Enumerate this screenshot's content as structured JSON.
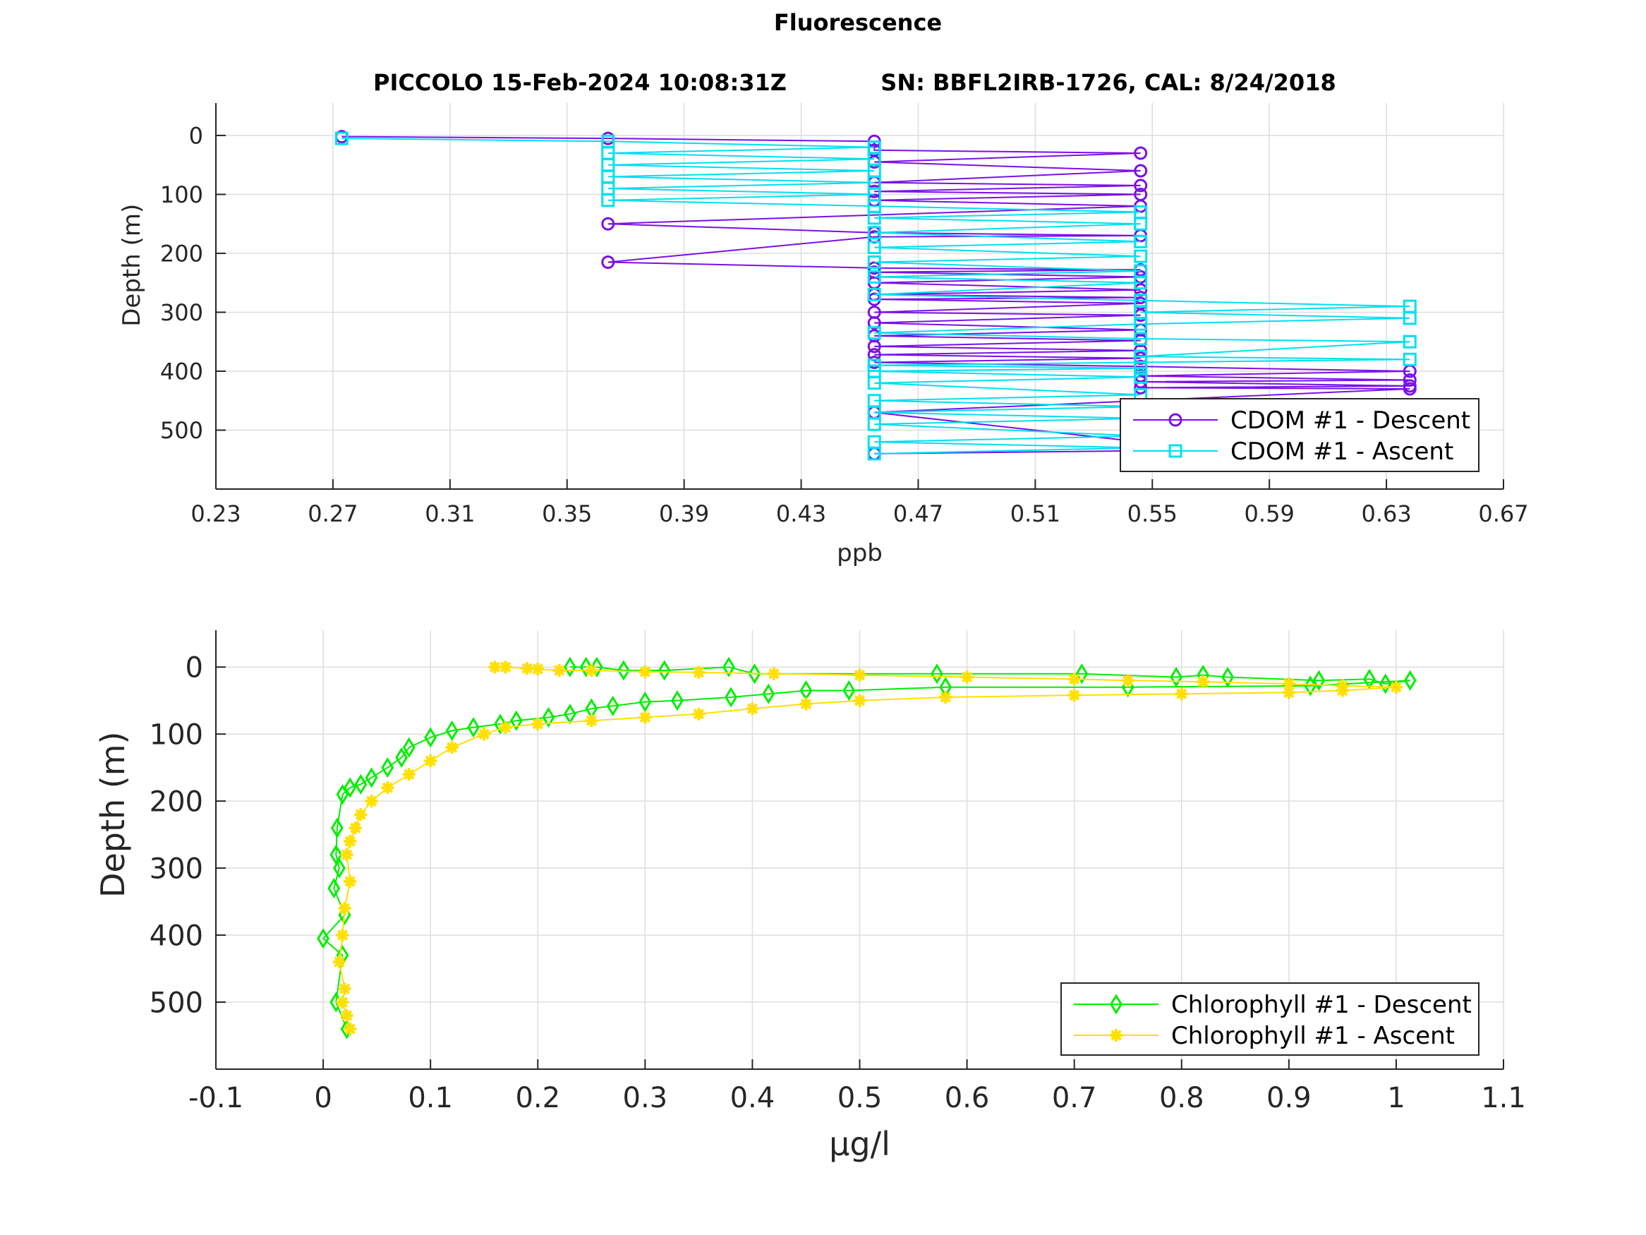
{
  "figure_title": "Fluorescence",
  "subtitle_left": "PICCOLO 15-Feb-2024 10:08:31Z",
  "subtitle_right": "SN: BBFL2IRB-1726, CAL: 8/24/2018",
  "colors": {
    "cdom_descent": "#7B10E8",
    "cdom_ascent": "#00E0F0",
    "chl_descent": "#00EE00",
    "chl_ascent": "#FFE000",
    "grid": "#DDDDDD",
    "axis": "#262626"
  },
  "chart_data": [
    {
      "type": "line",
      "name": "cdom",
      "xlabel": "ppb",
      "ylabel": "Depth (m)",
      "xlim": [
        0.23,
        0.67
      ],
      "ylim": [
        -55,
        600
      ],
      "y_reversed": true,
      "grid": true,
      "legend_position": "bottom-right",
      "x_ticks": [
        "0.23",
        "0.27",
        "0.31",
        "0.35",
        "0.39",
        "0.43",
        "0.47",
        "0.51",
        "0.55",
        "0.59",
        "0.63",
        "0.67"
      ],
      "y_ticks": [
        "0",
        "100",
        "200",
        "300",
        "400",
        "500"
      ],
      "x_tick_values": [
        0.23,
        0.27,
        0.31,
        0.35,
        0.39,
        0.43,
        0.47,
        0.51,
        0.55,
        0.59,
        0.63,
        0.67
      ],
      "y_tick_values": [
        0,
        100,
        200,
        300,
        400,
        500
      ],
      "series": [
        {
          "name": "CDOM #1 - Descent",
          "marker": "circle",
          "x": [
            0.273,
            0.364,
            0.455,
            0.455,
            0.546,
            0.455,
            0.546,
            0.455,
            0.546,
            0.455,
            0.546,
            0.455,
            0.546,
            0.364,
            0.455,
            0.546,
            0.455,
            0.364,
            0.455,
            0.546,
            0.455,
            0.546,
            0.455,
            0.546,
            0.455,
            0.546,
            0.455,
            0.546,
            0.455,
            0.546,
            0.455,
            0.546,
            0.455,
            0.546,
            0.455,
            0.546,
            0.455,
            0.546,
            0.455,
            0.546,
            0.638,
            0.546,
            0.638,
            0.546,
            0.638,
            0.546,
            0.638,
            0.455,
            0.546,
            0.638,
            0.455
          ],
          "y": [
            2,
            5,
            10,
            25,
            30,
            45,
            60,
            80,
            85,
            95,
            100,
            110,
            120,
            150,
            165,
            170,
            172,
            215,
            225,
            228,
            232,
            240,
            250,
            262,
            270,
            275,
            278,
            285,
            300,
            305,
            318,
            330,
            340,
            348,
            358,
            365,
            372,
            378,
            385,
            392,
            400,
            408,
            415,
            418,
            425,
            428,
            430,
            470,
            520,
            530,
            540
          ]
        },
        {
          "name": "CDOM #1 - Ascent",
          "marker": "square",
          "x": [
            0.455,
            0.546,
            0.455,
            0.546,
            0.455,
            0.546,
            0.455,
            0.546,
            0.455,
            0.546,
            0.455,
            0.546,
            0.455,
            0.546,
            0.455,
            0.546,
            0.638,
            0.546,
            0.638,
            0.546,
            0.455,
            0.546,
            0.638,
            0.546,
            0.638,
            0.546,
            0.455,
            0.546,
            0.455,
            0.546,
            0.455,
            0.546,
            0.455,
            0.546,
            0.455,
            0.546,
            0.455,
            0.546,
            0.455,
            0.364,
            0.455,
            0.364,
            0.455,
            0.364,
            0.455,
            0.364,
            0.455,
            0.364,
            0.455,
            0.364,
            0.273
          ],
          "y": [
            540,
            530,
            520,
            510,
            490,
            480,
            470,
            460,
            450,
            440,
            420,
            410,
            400,
            395,
            390,
            385,
            380,
            375,
            350,
            345,
            335,
            320,
            310,
            300,
            290,
            280,
            270,
            250,
            240,
            230,
            215,
            205,
            190,
            180,
            165,
            150,
            140,
            130,
            120,
            110,
            100,
            90,
            80,
            70,
            60,
            50,
            40,
            30,
            20,
            10,
            5
          ]
        }
      ]
    },
    {
      "type": "line",
      "name": "chlorophyll",
      "xlabel": "μg/l",
      "ylabel": "Depth (m)",
      "xlim": [
        -0.1,
        1.1
      ],
      "ylim": [
        -55,
        600
      ],
      "y_reversed": true,
      "grid": true,
      "legend_position": "bottom-right",
      "x_ticks": [
        "-0.1",
        "0",
        "0.1",
        "0.2",
        "0.3",
        "0.4",
        "0.5",
        "0.6",
        "0.7",
        "0.8",
        "0.9",
        "1",
        "1.1"
      ],
      "y_ticks": [
        "0",
        "100",
        "200",
        "300",
        "400",
        "500"
      ],
      "x_tick_values": [
        -0.1,
        0,
        0.1,
        0.2,
        0.3,
        0.4,
        0.5,
        0.6,
        0.7,
        0.8,
        0.9,
        1.0,
        1.1
      ],
      "y_tick_values": [
        0,
        100,
        200,
        300,
        400,
        500
      ],
      "series": [
        {
          "name": "Chlorophyll #1 - Descent",
          "marker": "diamond",
          "x": [
            0.23,
            0.245,
            0.255,
            0.28,
            0.318,
            0.378,
            0.402,
            0.572,
            0.707,
            0.795,
            0.82,
            0.843,
            0.928,
            0.975,
            0.99,
            1.013,
            0.92,
            0.75,
            0.58,
            0.49,
            0.45,
            0.415,
            0.38,
            0.33,
            0.3,
            0.27,
            0.25,
            0.23,
            0.21,
            0.18,
            0.165,
            0.14,
            0.12,
            0.1,
            0.08,
            0.073,
            0.06,
            0.045,
            0.035,
            0.025,
            0.018,
            0.013,
            0.012,
            0.015,
            0.01,
            0.02,
            0.0,
            0.018,
            0.012,
            0.022
          ],
          "y": [
            0,
            0,
            0,
            5,
            5,
            0,
            10,
            10,
            10,
            15,
            12,
            15,
            20,
            18,
            25,
            20,
            28,
            30,
            30,
            35,
            35,
            40,
            45,
            50,
            52,
            58,
            62,
            70,
            75,
            80,
            85,
            90,
            95,
            105,
            120,
            135,
            150,
            165,
            175,
            180,
            190,
            240,
            280,
            300,
            330,
            370,
            405,
            430,
            500,
            540
          ]
        },
        {
          "name": "Chlorophyll #1 - Ascent",
          "marker": "asterisk",
          "x": [
            0.025,
            0.022,
            0.018,
            0.02,
            0.015,
            0.018,
            0.02,
            0.025,
            0.022,
            0.025,
            0.03,
            0.035,
            0.045,
            0.06,
            0.08,
            0.1,
            0.12,
            0.15,
            0.17,
            0.2,
            0.25,
            0.3,
            0.35,
            0.4,
            0.45,
            0.5,
            0.58,
            0.7,
            0.8,
            0.9,
            0.95,
            1.0,
            0.95,
            0.9,
            0.82,
            0.75,
            0.7,
            0.6,
            0.5,
            0.42,
            0.35,
            0.3,
            0.25,
            0.22,
            0.2,
            0.19,
            0.17,
            0.16
          ],
          "y": [
            540,
            520,
            500,
            480,
            440,
            400,
            360,
            320,
            280,
            260,
            240,
            220,
            200,
            180,
            160,
            140,
            120,
            100,
            90,
            85,
            80,
            75,
            70,
            62,
            55,
            50,
            45,
            42,
            40,
            38,
            35,
            30,
            28,
            25,
            22,
            20,
            18,
            15,
            12,
            10,
            8,
            7,
            5,
            5,
            3,
            2,
            0,
            0
          ]
        }
      ]
    }
  ]
}
